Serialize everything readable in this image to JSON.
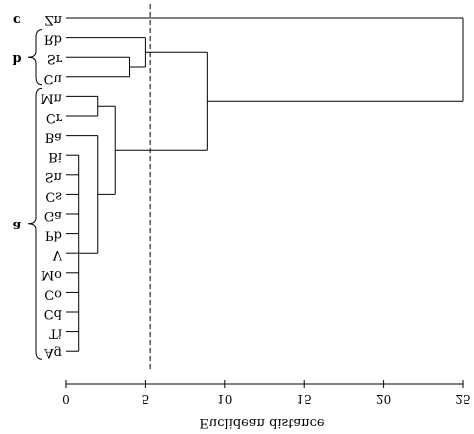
{
  "chart_data": {
    "type": "dendrogram",
    "title": "",
    "xlabel": "Euclidean distance",
    "ylabel": "",
    "xlim": [
      0,
      25
    ],
    "xticks": [
      0,
      5,
      10,
      15,
      20,
      25
    ],
    "cut_line": 5.3,
    "leaves": [
      "Zn",
      "Rb",
      "Sr",
      "Cu",
      "Mn",
      "Cr",
      "Ba",
      "Bi",
      "Sn",
      "Cs",
      "Ga",
      "Pb",
      "V",
      "Mo",
      "Co",
      "Cd",
      "Ti",
      "Ag"
    ],
    "merges": [
      {
        "children": [
          "Bi",
          "Sn",
          "Cs",
          "Ga",
          "Pb",
          "V",
          "Mo",
          "Co",
          "Cd",
          "Ti",
          "Ag"
        ],
        "height": 0.8
      },
      {
        "children": [
          "Ba",
          "m1"
        ],
        "height": 2.0
      },
      {
        "children": [
          "Mn",
          "Cr"
        ],
        "height": 2.0
      },
      {
        "children": [
          "m3",
          "m2"
        ],
        "height": 3.1
      },
      {
        "children": [
          "Sr",
          "Cu"
        ],
        "height": 4.0
      },
      {
        "children": [
          "Rb",
          "m5"
        ],
        "height": 5.0
      },
      {
        "children": [
          "m6",
          "m4"
        ],
        "height": 8.9
      },
      {
        "children": [
          "Zn",
          "m7"
        ],
        "height": 25.0
      }
    ],
    "groups": [
      {
        "label": "c",
        "members": [
          "Zn"
        ]
      },
      {
        "label": "b",
        "members": [
          "Rb",
          "Sr",
          "Cu"
        ]
      },
      {
        "label": "a",
        "members": [
          "Mn",
          "Cr",
          "Ba",
          "Bi",
          "Sn",
          "Cs",
          "Ga",
          "Pb",
          "V",
          "Mo",
          "Co",
          "Cd",
          "Ti",
          "Ag"
        ]
      }
    ]
  }
}
